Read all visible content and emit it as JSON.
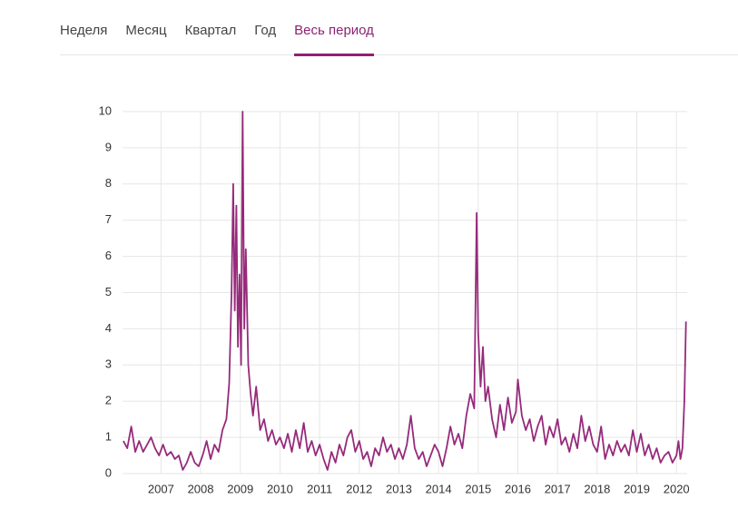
{
  "tabs": {
    "items": [
      "Неделя",
      "Месяц",
      "Квартал",
      "Год",
      "Весь период"
    ],
    "active": 4
  },
  "chart_data": {
    "type": "line",
    "color": "#962a7b",
    "grid": true,
    "xlim": [
      2006.03,
      2020.27
    ],
    "xticks": [
      2007,
      2008,
      2009,
      2010,
      2011,
      2012,
      2013,
      2014,
      2015,
      2016,
      2017,
      2018,
      2019,
      2020
    ],
    "ylim": [
      0,
      10
    ],
    "yticks": [
      0,
      1,
      2,
      3,
      4,
      5,
      6,
      7,
      8,
      9,
      10
    ],
    "x": [
      2006.05,
      2006.15,
      2006.25,
      2006.35,
      2006.45,
      2006.55,
      2006.65,
      2006.75,
      2006.85,
      2006.95,
      2007.05,
      2007.15,
      2007.25,
      2007.35,
      2007.45,
      2007.55,
      2007.65,
      2007.75,
      2007.85,
      2007.95,
      2008.05,
      2008.15,
      2008.25,
      2008.35,
      2008.45,
      2008.55,
      2008.65,
      2008.72,
      2008.78,
      2008.82,
      2008.86,
      2008.9,
      2008.94,
      2008.98,
      2009.02,
      2009.06,
      2009.1,
      2009.14,
      2009.2,
      2009.26,
      2009.32,
      2009.4,
      2009.5,
      2009.6,
      2009.7,
      2009.8,
      2009.9,
      2010.0,
      2010.1,
      2010.2,
      2010.3,
      2010.4,
      2010.5,
      2010.6,
      2010.7,
      2010.8,
      2010.9,
      2011.0,
      2011.1,
      2011.2,
      2011.3,
      2011.4,
      2011.5,
      2011.6,
      2011.7,
      2011.8,
      2011.9,
      2012.0,
      2012.1,
      2012.2,
      2012.3,
      2012.4,
      2012.5,
      2012.6,
      2012.7,
      2012.8,
      2012.9,
      2013.0,
      2013.1,
      2013.2,
      2013.3,
      2013.4,
      2013.5,
      2013.6,
      2013.7,
      2013.8,
      2013.9,
      2014.0,
      2014.1,
      2014.2,
      2014.3,
      2014.4,
      2014.5,
      2014.6,
      2014.7,
      2014.8,
      2014.9,
      2014.96,
      2015.0,
      2015.06,
      2015.12,
      2015.18,
      2015.25,
      2015.35,
      2015.45,
      2015.55,
      2015.65,
      2015.75,
      2015.85,
      2015.95,
      2016.0,
      2016.1,
      2016.2,
      2016.3,
      2016.4,
      2016.5,
      2016.6,
      2016.7,
      2016.8,
      2016.9,
      2017.0,
      2017.1,
      2017.2,
      2017.3,
      2017.4,
      2017.5,
      2017.6,
      2017.7,
      2017.8,
      2017.9,
      2018.0,
      2018.1,
      2018.2,
      2018.3,
      2018.4,
      2018.5,
      2018.6,
      2018.7,
      2018.8,
      2018.9,
      2019.0,
      2019.1,
      2019.2,
      2019.3,
      2019.4,
      2019.5,
      2019.6,
      2019.7,
      2019.8,
      2019.9,
      2020.0,
      2020.05,
      2020.1,
      2020.15,
      2020.2,
      2020.24
    ],
    "values": [
      0.9,
      0.7,
      1.3,
      0.6,
      0.9,
      0.6,
      0.8,
      1.0,
      0.7,
      0.5,
      0.8,
      0.5,
      0.6,
      0.4,
      0.5,
      0.1,
      0.3,
      0.6,
      0.3,
      0.2,
      0.5,
      0.9,
      0.4,
      0.8,
      0.6,
      1.2,
      1.5,
      2.5,
      5.0,
      8.0,
      4.5,
      7.4,
      3.5,
      5.5,
      3.0,
      10.0,
      4.0,
      6.2,
      3.0,
      2.2,
      1.6,
      2.4,
      1.2,
      1.5,
      0.9,
      1.2,
      0.8,
      1.0,
      0.7,
      1.1,
      0.6,
      1.2,
      0.7,
      1.4,
      0.6,
      0.9,
      0.5,
      0.8,
      0.4,
      0.1,
      0.6,
      0.3,
      0.8,
      0.5,
      1.0,
      1.2,
      0.6,
      0.9,
      0.4,
      0.6,
      0.2,
      0.7,
      0.5,
      1.0,
      0.6,
      0.8,
      0.4,
      0.7,
      0.4,
      0.8,
      1.6,
      0.7,
      0.4,
      0.6,
      0.2,
      0.5,
      0.8,
      0.6,
      0.2,
      0.7,
      1.3,
      0.8,
      1.1,
      0.7,
      1.6,
      2.2,
      1.8,
      7.2,
      3.9,
      2.4,
      3.5,
      2.0,
      2.4,
      1.5,
      1.0,
      1.9,
      1.2,
      2.1,
      1.4,
      1.7,
      2.6,
      1.6,
      1.2,
      1.5,
      0.9,
      1.3,
      1.6,
      0.8,
      1.3,
      1.0,
      1.5,
      0.8,
      1.0,
      0.6,
      1.1,
      0.7,
      1.6,
      0.9,
      1.3,
      0.8,
      0.6,
      1.3,
      0.4,
      0.8,
      0.5,
      0.9,
      0.6,
      0.8,
      0.5,
      1.2,
      0.6,
      1.1,
      0.5,
      0.8,
      0.4,
      0.7,
      0.3,
      0.5,
      0.6,
      0.3,
      0.5,
      0.9,
      0.4,
      0.7,
      2.0,
      4.2
    ]
  }
}
